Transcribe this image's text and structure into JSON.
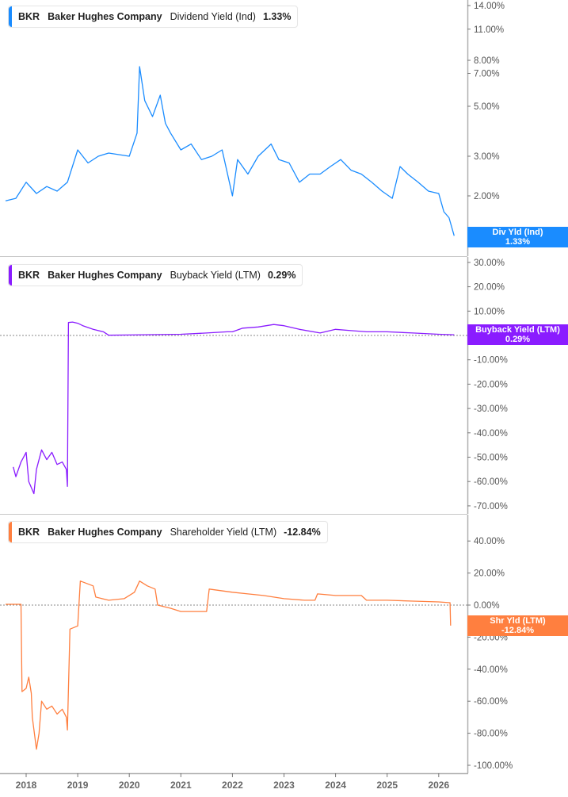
{
  "colors": {
    "dividend": "#1a8cff",
    "buyback": "#8a1cff",
    "shareholder": "#ff7f3f",
    "axis": "#b0b0b0",
    "grid_zero": "#888888"
  },
  "panels": [
    {
      "id": "dividend",
      "legend": {
        "ticker": "BKR",
        "company": "Baker Hughes Company",
        "metric": "Dividend Yield (Ind)",
        "value": "1.33%"
      },
      "flag": {
        "label": "Div Yld (Ind)",
        "value": "1.33%"
      }
    },
    {
      "id": "buyback",
      "legend": {
        "ticker": "BKR",
        "company": "Baker Hughes Company",
        "metric": "Buyback Yield (LTM)",
        "value": "0.29%"
      },
      "flag": {
        "label": "Buyback Yield (LTM)",
        "value": "0.29%"
      }
    },
    {
      "id": "shareholder",
      "legend": {
        "ticker": "BKR",
        "company": "Baker Hughes Company",
        "metric": "Shareholder Yield (LTM)",
        "value": "-12.84%"
      },
      "flag": {
        "label": "Shr Yld (LTM)",
        "value": "-12.84%"
      }
    }
  ],
  "chart_data": [
    {
      "type": "line",
      "title": "BKR Baker Hughes Company Dividend Yield (Ind) 1.33%",
      "scale": "log",
      "yticks": [
        "14.00%",
        "11.00%",
        "8.00%",
        "7.00%",
        "5.00%",
        "3.00%",
        "2.00%"
      ],
      "ytick_values": [
        14,
        11,
        8,
        7,
        5,
        3,
        2
      ],
      "ylim": [
        1.2,
        15
      ],
      "x": [
        2017.6,
        2017.8,
        2018.0,
        2018.2,
        2018.4,
        2018.6,
        2018.8,
        2019.0,
        2019.2,
        2019.4,
        2019.6,
        2019.8,
        2020.0,
        2020.15,
        2020.2,
        2020.3,
        2020.45,
        2020.6,
        2020.7,
        2020.8,
        2021.0,
        2021.2,
        2021.4,
        2021.6,
        2021.8,
        2022.0,
        2022.1,
        2022.3,
        2022.5,
        2022.75,
        2022.9,
        2023.1,
        2023.3,
        2023.5,
        2023.7,
        2023.9,
        2024.1,
        2024.3,
        2024.5,
        2024.7,
        2024.9,
        2025.1,
        2025.25,
        2025.4,
        2025.6,
        2025.8,
        2026.0,
        2026.1,
        2026.2,
        2026.3
      ],
      "values": [
        1.9,
        1.95,
        2.3,
        2.05,
        2.2,
        2.1,
        2.3,
        3.2,
        2.8,
        3.0,
        3.1,
        3.05,
        3.0,
        3.8,
        7.5,
        5.3,
        4.5,
        5.6,
        4.2,
        3.8,
        3.2,
        3.4,
        2.9,
        3.0,
        3.2,
        2.0,
        2.9,
        2.5,
        3.0,
        3.4,
        2.9,
        2.8,
        2.3,
        2.5,
        2.5,
        2.7,
        2.9,
        2.6,
        2.5,
        2.3,
        2.1,
        1.95,
        2.7,
        2.5,
        2.3,
        2.1,
        2.05,
        1.7,
        1.6,
        1.33
      ],
      "xlabel": "",
      "ylabel": ""
    },
    {
      "type": "line",
      "title": "BKR Baker Hughes Company Buyback Yield (LTM) 0.29%",
      "yticks": [
        "30.00%",
        "20.00%",
        "10.00%",
        "0.00%",
        "-10.00%",
        "-20.00%",
        "-30.00%",
        "-40.00%",
        "-50.00%",
        "-60.00%",
        "-70.00%"
      ],
      "ytick_values": [
        30,
        20,
        10,
        0,
        -10,
        -20,
        -30,
        -40,
        -50,
        -60,
        -70
      ],
      "ylim": [
        -72,
        33
      ],
      "x": [
        2017.75,
        2017.8,
        2017.9,
        2018.0,
        2018.05,
        2018.15,
        2018.2,
        2018.3,
        2018.4,
        2018.5,
        2018.6,
        2018.7,
        2018.78,
        2018.8,
        2018.82,
        2018.9,
        2019.0,
        2019.1,
        2019.3,
        2019.5,
        2019.6,
        2020.0,
        2021.0,
        2021.5,
        2021.9,
        2022.0,
        2022.2,
        2022.5,
        2022.8,
        2023.0,
        2023.3,
        2023.7,
        2024.0,
        2024.3,
        2024.6,
        2025.0,
        2025.5,
        2026.0,
        2026.3
      ],
      "values": [
        -54,
        -58,
        -52,
        -48,
        -60,
        -65,
        -55,
        -47,
        -51,
        -48,
        -53,
        -52,
        -55,
        -62,
        5.3,
        5.5,
        5.0,
        4.0,
        2.5,
        1.5,
        0.1,
        0.2,
        0.5,
        1.0,
        1.5,
        1.5,
        3.0,
        3.5,
        4.5,
        4.0,
        2.5,
        1.0,
        2.5,
        2.0,
        1.5,
        1.5,
        1.0,
        0.5,
        0.29
      ],
      "xlabel": "",
      "ylabel": ""
    },
    {
      "type": "line",
      "title": "BKR Baker Hughes Company Shareholder Yield (LTM) -12.84%",
      "yticks": [
        "40.00%",
        "20.00%",
        "0.00%",
        "-20.00%",
        "-40.00%",
        "-60.00%",
        "-80.00%",
        "-100.00%"
      ],
      "ytick_values": [
        40,
        20,
        0,
        -20,
        -40,
        -60,
        -80,
        -100
      ],
      "ylim": [
        -102,
        48
      ],
      "x": [
        2017.6,
        2017.9,
        2017.92,
        2018.0,
        2018.05,
        2018.1,
        2018.12,
        2018.2,
        2018.25,
        2018.3,
        2018.4,
        2018.5,
        2018.6,
        2018.7,
        2018.78,
        2018.8,
        2018.85,
        2019.0,
        2019.05,
        2019.3,
        2019.35,
        2019.6,
        2019.9,
        2020.1,
        2020.2,
        2020.35,
        2020.5,
        2020.55,
        2020.8,
        2021.0,
        2021.3,
        2021.5,
        2021.55,
        2022.0,
        2022.3,
        2022.6,
        2023.0,
        2023.4,
        2023.6,
        2023.65,
        2024.0,
        2024.5,
        2024.6,
        2025.0,
        2025.5,
        2026.0,
        2026.22,
        2026.23
      ],
      "values": [
        0.5,
        0.5,
        -54,
        -52,
        -45,
        -55,
        -70,
        -90,
        -80,
        -60,
        -65,
        -63,
        -68,
        -65,
        -70,
        -78,
        -15,
        -13,
        15,
        12,
        5,
        3,
        4,
        8,
        15,
        12,
        10,
        0,
        -2,
        -4,
        -4,
        -4,
        10,
        8,
        7,
        6,
        4,
        3,
        3,
        7,
        6,
        6,
        3,
        3,
        2.5,
        2,
        1.5,
        -12.84
      ],
      "xlabel": "",
      "ylabel": ""
    }
  ],
  "x_axis": {
    "ticks": [
      "2018",
      "2019",
      "2020",
      "2021",
      "2022",
      "2023",
      "2024",
      "2025",
      "2026"
    ],
    "tick_values": [
      2018,
      2019,
      2020,
      2021,
      2022,
      2023,
      2024,
      2025,
      2026
    ]
  }
}
